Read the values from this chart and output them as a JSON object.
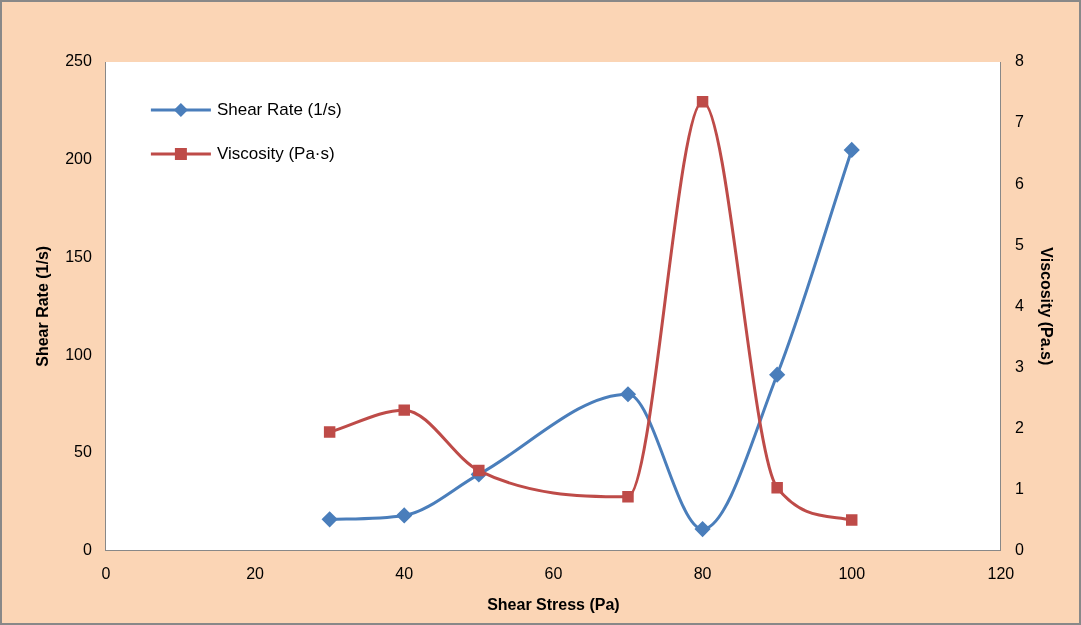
{
  "chart_data": {
    "type": "line",
    "xlabel": "Shear Stress (Pa)",
    "ylabel": "Shear Rate (1/s)",
    "y2label": "Viscosity (Pa.s)",
    "x": [
      30,
      40,
      50,
      70,
      80,
      90,
      100
    ],
    "series": [
      {
        "name": "Shear Rate (1/s)",
        "color": "#4a7ebb",
        "marker": "diamond",
        "values": [
          16,
          18,
          39,
          80,
          11,
          90,
          205
        ]
      },
      {
        "name": "Viscosity (Pa·s)",
        "color": "#be4b48",
        "marker": "square",
        "axis": "y2",
        "values": [
          1.94,
          2.3,
          1.31,
          0.88,
          7.35,
          1.03,
          0.5
        ]
      }
    ],
    "xlim": [
      0,
      120
    ],
    "xticks": [
      0,
      20,
      40,
      60,
      80,
      100,
      120
    ],
    "ylim": [
      0,
      250
    ],
    "yticks": [
      0,
      50,
      100,
      150,
      200,
      250
    ],
    "y2lim": [
      0,
      8
    ],
    "y2ticks": [
      0,
      1,
      2,
      3,
      4,
      5,
      6,
      7,
      8
    ],
    "grid": false,
    "legend": "top left"
  }
}
